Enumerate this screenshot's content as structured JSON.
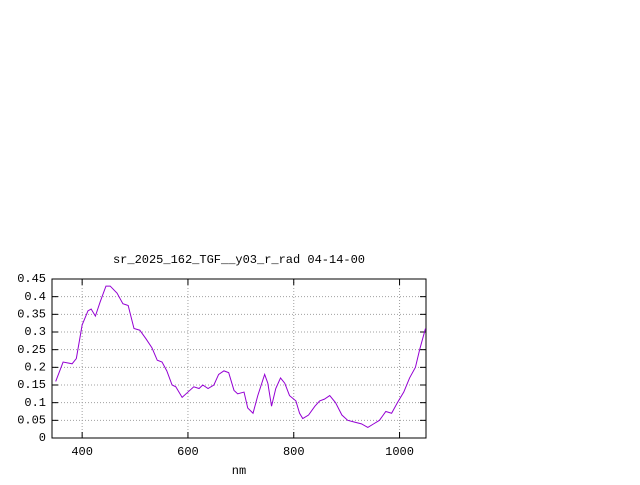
{
  "chart_data": {
    "type": "line",
    "title": "sr_2025_162_TGF__y03_r_rad 04-14-00",
    "xlabel": "nm",
    "x": [
      350,
      364,
      381,
      389,
      400,
      411,
      417,
      425,
      434,
      445,
      453,
      466,
      477,
      487,
      498,
      509,
      521,
      532,
      542,
      551,
      560,
      570,
      577,
      589,
      600,
      611,
      621,
      628,
      638,
      649,
      658,
      668,
      677,
      687,
      694,
      706,
      713,
      723,
      732,
      745,
      751,
      758,
      766,
      775,
      783,
      792,
      804,
      811,
      817,
      828,
      840,
      849,
      858,
      868,
      879,
      891,
      902,
      915,
      928,
      940,
      951,
      962,
      974,
      985,
      996,
      1008,
      1019,
      1030,
      1038,
      1049
    ],
    "series": [
      {
        "color": "#9400d3",
        "values": [
          0.16,
          0.215,
          0.21,
          0.225,
          0.32,
          0.36,
          0.365,
          0.345,
          0.385,
          0.43,
          0.43,
          0.41,
          0.38,
          0.375,
          0.31,
          0.305,
          0.28,
          0.255,
          0.22,
          0.215,
          0.19,
          0.15,
          0.145,
          0.115,
          0.13,
          0.145,
          0.14,
          0.15,
          0.14,
          0.15,
          0.18,
          0.19,
          0.185,
          0.135,
          0.125,
          0.13,
          0.085,
          0.07,
          0.12,
          0.18,
          0.155,
          0.09,
          0.14,
          0.17,
          0.155,
          0.12,
          0.105,
          0.07,
          0.055,
          0.065,
          0.09,
          0.105,
          0.11,
          0.12,
          0.1,
          0.065,
          0.05,
          0.045,
          0.04,
          0.03,
          0.04,
          0.05,
          0.075,
          0.07,
          0.1,
          0.13,
          0.17,
          0.2,
          0.25,
          0.31
        ]
      }
    ],
    "xlim": [
      343,
      1050
    ],
    "xticks": [
      400,
      600,
      800,
      1000
    ],
    "ylim": [
      0,
      0.45
    ],
    "yticks": [
      0,
      0.05,
      0.1,
      0.15,
      0.2,
      0.25,
      0.3,
      0.35,
      0.4,
      0.45
    ],
    "grid": true
  }
}
